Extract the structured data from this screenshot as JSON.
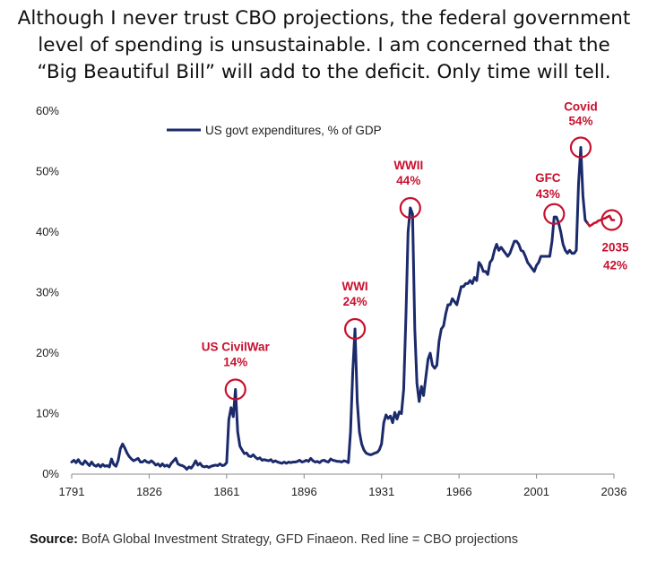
{
  "caption": {
    "lines": [
      "Although I never trust CBO projections, the federal government",
      "level of spending is unsustainable. I am concerned that the",
      "“Big Beautiful Bill” will add to the deficit. Only time will tell."
    ]
  },
  "source": {
    "label": "Source:",
    "text": " BofA Global Investment Strategy, GFD Finaeon. Red line = CBO projections"
  },
  "colors": {
    "series": "#1b2a6b",
    "projection": "#c8102e",
    "annotation": "#c8102e"
  },
  "chart_data": {
    "type": "line",
    "title": "",
    "xlabel": "",
    "ylabel": "",
    "xlim": [
      1791,
      2036
    ],
    "ylim": [
      0,
      60
    ],
    "x_ticks": [
      "1791",
      "1826",
      "1861",
      "1896",
      "1931",
      "1966",
      "2001",
      "2036"
    ],
    "y_ticks": [
      "0%",
      "10%",
      "20%",
      "30%",
      "40%",
      "50%",
      "60%"
    ],
    "grid": false,
    "legend_position": "top-left",
    "series": [
      {
        "name": "US govt expenditures, % of GDP",
        "color": "#1b2a6b",
        "points": [
          [
            1791,
            2
          ],
          [
            1792,
            2.3
          ],
          [
            1793,
            1.9
          ],
          [
            1794,
            2.4
          ],
          [
            1795,
            1.8
          ],
          [
            1796,
            1.6
          ],
          [
            1797,
            2.2
          ],
          [
            1798,
            1.8
          ],
          [
            1799,
            1.4
          ],
          [
            1800,
            2
          ],
          [
            1801,
            1.5
          ],
          [
            1802,
            1.3
          ],
          [
            1803,
            1.6
          ],
          [
            1804,
            1.2
          ],
          [
            1805,
            1.6
          ],
          [
            1806,
            1.3
          ],
          [
            1807,
            1.4
          ],
          [
            1808,
            1.2
          ],
          [
            1809,
            2.5
          ],
          [
            1810,
            1.6
          ],
          [
            1811,
            1.3
          ],
          [
            1812,
            2.3
          ],
          [
            1813,
            4.2
          ],
          [
            1814,
            5
          ],
          [
            1815,
            4.3
          ],
          [
            1816,
            3.5
          ],
          [
            1817,
            2.9
          ],
          [
            1818,
            2.5
          ],
          [
            1819,
            2.2
          ],
          [
            1820,
            2.4
          ],
          [
            1821,
            2.6
          ],
          [
            1822,
            2
          ],
          [
            1823,
            2
          ],
          [
            1824,
            2.3
          ],
          [
            1825,
            2
          ],
          [
            1826,
            1.9
          ],
          [
            1827,
            2.2
          ],
          [
            1828,
            1.9
          ],
          [
            1829,
            1.5
          ],
          [
            1830,
            1.7
          ],
          [
            1831,
            1.3
          ],
          [
            1832,
            1.7
          ],
          [
            1833,
            1.3
          ],
          [
            1834,
            1.5
          ],
          [
            1835,
            1.2
          ],
          [
            1836,
            1.8
          ],
          [
            1837,
            2.2
          ],
          [
            1838,
            2.6
          ],
          [
            1839,
            1.7
          ],
          [
            1840,
            1.5
          ],
          [
            1841,
            1.4
          ],
          [
            1842,
            1.2
          ],
          [
            1843,
            0.8
          ],
          [
            1844,
            1.2
          ],
          [
            1845,
            1
          ],
          [
            1846,
            1.5
          ],
          [
            1847,
            2.2
          ],
          [
            1848,
            1.5
          ],
          [
            1849,
            1.8
          ],
          [
            1850,
            1.3
          ],
          [
            1851,
            1.2
          ],
          [
            1852,
            1.3
          ],
          [
            1853,
            1.1
          ],
          [
            1854,
            1.3
          ],
          [
            1855,
            1.4
          ],
          [
            1856,
            1.5
          ],
          [
            1857,
            1.4
          ],
          [
            1858,
            1.7
          ],
          [
            1859,
            1.4
          ],
          [
            1860,
            1.5
          ],
          [
            1861,
            1.9
          ],
          [
            1862,
            9
          ],
          [
            1863,
            11
          ],
          [
            1864,
            9.5
          ],
          [
            1865,
            14
          ],
          [
            1866,
            7
          ],
          [
            1867,
            4.6
          ],
          [
            1868,
            4
          ],
          [
            1869,
            3.4
          ],
          [
            1870,
            3.5
          ],
          [
            1871,
            3
          ],
          [
            1872,
            2.9
          ],
          [
            1873,
            3.2
          ],
          [
            1874,
            2.8
          ],
          [
            1875,
            2.5
          ],
          [
            1876,
            2.7
          ],
          [
            1877,
            2.3
          ],
          [
            1878,
            2.4
          ],
          [
            1879,
            2.3
          ],
          [
            1880,
            2.2
          ],
          [
            1881,
            2.4
          ],
          [
            1882,
            2
          ],
          [
            1883,
            2.2
          ],
          [
            1884,
            2
          ],
          [
            1885,
            1.9
          ],
          [
            1886,
            1.8
          ],
          [
            1887,
            2
          ],
          [
            1888,
            1.8
          ],
          [
            1889,
            2
          ],
          [
            1890,
            1.9
          ],
          [
            1891,
            2
          ],
          [
            1892,
            2
          ],
          [
            1893,
            2.1
          ],
          [
            1894,
            2.3
          ],
          [
            1895,
            2
          ],
          [
            1896,
            2.1
          ],
          [
            1897,
            2.3
          ],
          [
            1898,
            2.1
          ],
          [
            1899,
            2.6
          ],
          [
            1900,
            2.2
          ],
          [
            1901,
            2
          ],
          [
            1902,
            2.1
          ],
          [
            1903,
            1.9
          ],
          [
            1904,
            2.2
          ],
          [
            1905,
            2.3
          ],
          [
            1906,
            2.1
          ],
          [
            1907,
            2
          ],
          [
            1908,
            2.5
          ],
          [
            1909,
            2.3
          ],
          [
            1910,
            2.2
          ],
          [
            1911,
            2.1
          ],
          [
            1912,
            2.1
          ],
          [
            1913,
            2
          ],
          [
            1914,
            2.2
          ],
          [
            1915,
            2.1
          ],
          [
            1916,
            1.9
          ],
          [
            1917,
            7
          ],
          [
            1918,
            17
          ],
          [
            1919,
            24
          ],
          [
            1920,
            12
          ],
          [
            1921,
            7
          ],
          [
            1922,
            5
          ],
          [
            1923,
            4
          ],
          [
            1924,
            3.5
          ],
          [
            1925,
            3.3
          ],
          [
            1926,
            3.2
          ],
          [
            1927,
            3.3
          ],
          [
            1928,
            3.5
          ],
          [
            1929,
            3.6
          ],
          [
            1930,
            4
          ],
          [
            1931,
            5
          ],
          [
            1932,
            8.5
          ],
          [
            1933,
            9.8
          ],
          [
            1934,
            9.2
          ],
          [
            1935,
            9.6
          ],
          [
            1936,
            8.5
          ],
          [
            1937,
            10.2
          ],
          [
            1938,
            9.1
          ],
          [
            1939,
            10.3
          ],
          [
            1940,
            10
          ],
          [
            1941,
            14
          ],
          [
            1942,
            26
          ],
          [
            1943,
            40
          ],
          [
            1944,
            44
          ],
          [
            1945,
            43
          ],
          [
            1946,
            24
          ],
          [
            1947,
            15
          ],
          [
            1948,
            12
          ],
          [
            1949,
            14.5
          ],
          [
            1950,
            13
          ],
          [
            1951,
            16
          ],
          [
            1952,
            19
          ],
          [
            1953,
            20
          ],
          [
            1954,
            18
          ],
          [
            1955,
            17.5
          ],
          [
            1956,
            18
          ],
          [
            1957,
            22
          ],
          [
            1958,
            24
          ],
          [
            1959,
            24.5
          ],
          [
            1960,
            26.5
          ],
          [
            1961,
            28
          ],
          [
            1962,
            28
          ],
          [
            1963,
            29
          ],
          [
            1964,
            28.5
          ],
          [
            1965,
            28
          ],
          [
            1966,
            29.5
          ],
          [
            1967,
            31
          ],
          [
            1968,
            31
          ],
          [
            1969,
            31.5
          ],
          [
            1970,
            31.5
          ],
          [
            1971,
            32
          ],
          [
            1972,
            31.5
          ],
          [
            1973,
            32.5
          ],
          [
            1974,
            32
          ],
          [
            1975,
            35
          ],
          [
            1976,
            34.5
          ],
          [
            1977,
            33.5
          ],
          [
            1978,
            33.5
          ],
          [
            1979,
            33
          ],
          [
            1980,
            35
          ],
          [
            1981,
            35.5
          ],
          [
            1982,
            37
          ],
          [
            1983,
            38
          ],
          [
            1984,
            37
          ],
          [
            1985,
            37.5
          ],
          [
            1986,
            37
          ],
          [
            1987,
            36.5
          ],
          [
            1988,
            36
          ],
          [
            1989,
            36.5
          ],
          [
            1990,
            37.5
          ],
          [
            1991,
            38.5
          ],
          [
            1992,
            38.5
          ],
          [
            1993,
            38
          ],
          [
            1994,
            37
          ],
          [
            1995,
            36.8
          ],
          [
            1996,
            36
          ],
          [
            1997,
            35
          ],
          [
            1998,
            34.5
          ],
          [
            1999,
            34
          ],
          [
            2000,
            33.5
          ],
          [
            2001,
            34.5
          ],
          [
            2002,
            35
          ],
          [
            2003,
            36
          ],
          [
            2004,
            36
          ],
          [
            2005,
            36
          ],
          [
            2006,
            36
          ],
          [
            2007,
            36
          ],
          [
            2008,
            38.5
          ],
          [
            2009,
            42.5
          ],
          [
            2010,
            42.5
          ],
          [
            2011,
            41.5
          ],
          [
            2012,
            40
          ],
          [
            2013,
            38
          ],
          [
            2014,
            37
          ],
          [
            2015,
            36.5
          ],
          [
            2016,
            37
          ],
          [
            2017,
            36.5
          ],
          [
            2018,
            36.5
          ],
          [
            2019,
            37
          ],
          [
            2020,
            48
          ],
          [
            2021,
            54
          ],
          [
            2022,
            46
          ],
          [
            2023,
            42
          ],
          [
            2024,
            41.5
          ]
        ]
      },
      {
        "name": "CBO projections",
        "color": "#c8102e",
        "points": [
          [
            2024,
            41.5
          ],
          [
            2025,
            41
          ],
          [
            2026,
            41.2
          ],
          [
            2027,
            41.5
          ],
          [
            2028,
            41.6
          ],
          [
            2029,
            41.9
          ],
          [
            2030,
            42
          ],
          [
            2031,
            42.2
          ],
          [
            2032,
            42.3
          ],
          [
            2033,
            42.5
          ],
          [
            2034,
            42.7
          ],
          [
            2035,
            42
          ],
          [
            2036,
            42
          ]
        ]
      }
    ],
    "annotations": [
      {
        "label": "US CivilWar",
        "value_label": "14%",
        "x": 1865,
        "y": 14
      },
      {
        "label": "WWI",
        "value_label": "24%",
        "x": 1919,
        "y": 24
      },
      {
        "label": "WWII",
        "value_label": "44%",
        "x": 1944,
        "y": 44
      },
      {
        "label": "GFC",
        "value_label": "43%",
        "x": 2009,
        "y": 43
      },
      {
        "label": "Covid",
        "value_label": "54%",
        "x": 2021,
        "y": 54
      },
      {
        "label": "2035",
        "value_label": "42%",
        "x": 2035,
        "y": 42
      }
    ]
  }
}
